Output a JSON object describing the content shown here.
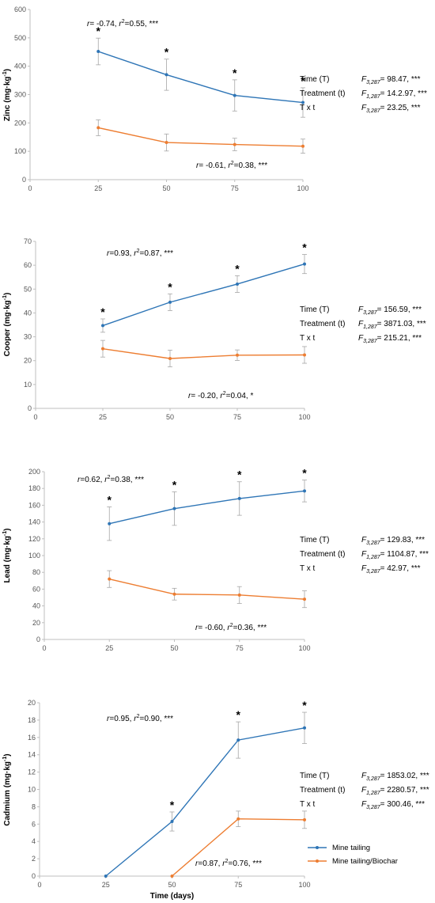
{
  "colors": {
    "mine_tailing": "#2e75b6",
    "mine_tailing_biochar": "#ed7d31",
    "axis": "#bfbfbf",
    "error": "#a6a6a6"
  },
  "x_axis_label": "Time (days)",
  "legend": {
    "placement": "bottom-right",
    "items": [
      "Mine tailing",
      "Mine tailing/Biochar"
    ]
  },
  "chart_data": [
    {
      "type": "line",
      "ylabel": "Zinc (mg·kg⁻¹)",
      "xlim": [
        0,
        100
      ],
      "ylim": [
        0,
        600
      ],
      "xticks": [
        0,
        25,
        50,
        75,
        100
      ],
      "yticks": [
        0,
        100,
        200,
        300,
        400,
        500,
        600
      ],
      "x": [
        25,
        50,
        75,
        100
      ],
      "series": [
        {
          "name": "Mine tailing",
          "values": [
            452,
            370,
            297,
            272
          ],
          "errors": [
            47,
            55,
            55,
            52
          ]
        },
        {
          "name": "Mine tailing/Biochar",
          "values": [
            183,
            131,
            124,
            118
          ],
          "errors": [
            28,
            30,
            22,
            25
          ]
        }
      ],
      "significance": [
        "*",
        "*",
        "*",
        "*"
      ],
      "annotation_top": {
        "r": "r= -0.74, ",
        "r2": "r²=0.55, ***"
      },
      "annotation_bottom": {
        "r": "r= -0.61, ",
        "r2": "r²=0.38, ***"
      },
      "stats": [
        {
          "label": "Time (T)",
          "value": "F3,287= 98.47, ***"
        },
        {
          "label": "Treatment (t)",
          "value": "F1,287= 14.2.97, ***"
        },
        {
          "label": "T x t",
          "value": "F3,287= 23.25, ***"
        }
      ]
    },
    {
      "type": "line",
      "ylabel": "Cooper (mg·kg⁻¹)",
      "xlim": [
        0,
        100
      ],
      "ylim": [
        0,
        70
      ],
      "xticks": [
        0,
        25,
        50,
        75,
        100
      ],
      "yticks": [
        0,
        10,
        20,
        30,
        40,
        50,
        60,
        70
      ],
      "x": [
        25,
        50,
        75,
        100
      ],
      "series": [
        {
          "name": "Mine tailing",
          "values": [
            34.7,
            44.5,
            52.1,
            60.5
          ],
          "errors": [
            2.8,
            3.5,
            3.5,
            4.0
          ]
        },
        {
          "name": "Mine tailing/Biochar",
          "values": [
            25.0,
            20.9,
            22.3,
            22.4
          ],
          "errors": [
            3.5,
            3.5,
            2.2,
            3.5
          ]
        }
      ],
      "significance": [
        "*",
        "*",
        "*",
        "*"
      ],
      "annotation_top": {
        "r": "r=0.93, ",
        "r2": "r²=0.87, ***"
      },
      "annotation_bottom": {
        "r": "r= -0.20, ",
        "r2": "r²=0.04, *"
      },
      "stats": [
        {
          "label": "Time (T)",
          "value": "F3,287= 156.59, ***"
        },
        {
          "label": "Treatment (t)",
          "value": "F1,287= 3871.03, ***"
        },
        {
          "label": "T x t",
          "value": "F3,287= 215.21, ***"
        }
      ]
    },
    {
      "type": "line",
      "ylabel": "Lead (mg·kg⁻¹)",
      "xlim": [
        0,
        100
      ],
      "ylim": [
        0,
        200
      ],
      "xticks": [
        0,
        25,
        50,
        75,
        100
      ],
      "yticks": [
        0,
        20,
        40,
        60,
        80,
        100,
        120,
        140,
        160,
        180,
        200
      ],
      "x": [
        25,
        50,
        75,
        100
      ],
      "series": [
        {
          "name": "Mine tailing",
          "values": [
            138,
            156,
            168,
            177
          ],
          "errors": [
            20,
            20,
            20,
            13
          ]
        },
        {
          "name": "Mine tailing/Biochar",
          "values": [
            72,
            54,
            53,
            48
          ],
          "errors": [
            10,
            7,
            10,
            10
          ]
        }
      ],
      "significance": [
        "*",
        "*",
        "*",
        "*"
      ],
      "annotation_top": {
        "r": "r=0.62, ",
        "r2": "r²=0.38, ***"
      },
      "annotation_bottom": {
        "r": "r= -0.60, ",
        "r2": "r²=0.36, ***"
      },
      "stats": [
        {
          "label": "Time (T)",
          "value": "F3,287= 129.83, ***"
        },
        {
          "label": "Treatment (t)",
          "value": "F1,287= 1104.87, ***"
        },
        {
          "label": "T x t",
          "value": "F3,287= 42.97, ***"
        }
      ]
    },
    {
      "type": "line",
      "ylabel": "Cadmium (mg·kg⁻¹)",
      "xlabel": "Time (days)",
      "xlim": [
        0,
        100
      ],
      "ylim": [
        0,
        20
      ],
      "xticks": [
        0,
        25,
        50,
        75,
        100
      ],
      "yticks": [
        0,
        2,
        4,
        6,
        8,
        10,
        12,
        14,
        16,
        18,
        20
      ],
      "x": [
        25,
        50,
        75,
        100
      ],
      "series": [
        {
          "name": "Mine tailing",
          "values": [
            0,
            6.3,
            15.7,
            17.1
          ],
          "errors": [
            0,
            1.1,
            2.1,
            1.8
          ]
        },
        {
          "name": "Mine tailing/Biochar",
          "values": [
            null,
            0,
            6.6,
            6.5
          ],
          "errors": [
            0,
            0,
            0.9,
            1.0
          ]
        }
      ],
      "significance": [
        "",
        "*",
        "*",
        "*"
      ],
      "annotation_top": {
        "r": "r=0.95, ",
        "r2": "r²=0.90, ***"
      },
      "annotation_bottom": {
        "r": "r=0.87, ",
        "r2": "r²=0.76, ***"
      },
      "stats": [
        {
          "label": "Time (T)",
          "value": "F3,287= 1853.02, ***"
        },
        {
          "label": "Treatment (t)",
          "value": "F1,287= 2280.57, ***"
        },
        {
          "label": "T x t",
          "value": "F3,287= 300.46, ***"
        }
      ]
    }
  ]
}
